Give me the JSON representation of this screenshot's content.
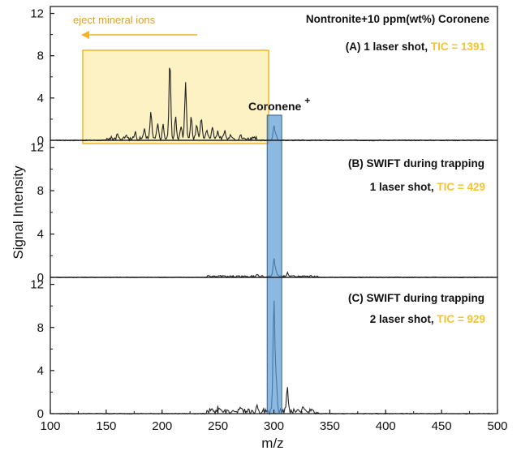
{
  "chart_data": {
    "type": "line",
    "xlabel": "m/z",
    "ylabel": "Signal Intensity",
    "xlim": [
      100,
      500
    ],
    "xticks": [
      100,
      150,
      200,
      250,
      300,
      350,
      400,
      450,
      500
    ],
    "yticks": [
      0,
      4,
      8,
      12
    ],
    "ylim": [
      0,
      12.5
    ],
    "colors": {
      "trace": "#222222",
      "highlight_fill": "#5b9bd5",
      "eject_box_fill": "#fbeeb0",
      "eject_box_stroke": "#f0b429",
      "tic_text": "#f4c430"
    },
    "panels": [
      {
        "id": "A",
        "title_line1": "Nontronite+10 ppm(wt%) Coronene",
        "title_line2_prefix": "(A) 1 laser shot, ",
        "tic": "TIC = 1391",
        "annotation": "eject mineral ions",
        "eject_region": [
          145,
          275
        ],
        "peaks": [
          {
            "x": 160,
            "y": 0.3
          },
          {
            "x": 168,
            "y": 0.5
          },
          {
            "x": 176,
            "y": 0.6
          },
          {
            "x": 184,
            "y": 0.9
          },
          {
            "x": 190,
            "y": 2.5
          },
          {
            "x": 196,
            "y": 1.5
          },
          {
            "x": 201,
            "y": 1.2
          },
          {
            "x": 207,
            "y": 7.5
          },
          {
            "x": 212,
            "y": 2.0
          },
          {
            "x": 217,
            "y": 1.2
          },
          {
            "x": 221,
            "y": 5.2
          },
          {
            "x": 226,
            "y": 2.0
          },
          {
            "x": 231,
            "y": 1.4
          },
          {
            "x": 235,
            "y": 2.1
          },
          {
            "x": 240,
            "y": 1.0
          },
          {
            "x": 245,
            "y": 1.2
          },
          {
            "x": 250,
            "y": 0.7
          },
          {
            "x": 256,
            "y": 0.6
          },
          {
            "x": 262,
            "y": 0.4
          },
          {
            "x": 270,
            "y": 0.3
          },
          {
            "x": 300,
            "y": 1.4
          },
          {
            "x": 302,
            "y": 0.5
          }
        ]
      },
      {
        "id": "B",
        "title_line1": "(B) SWIFT during trapping",
        "title_line2_prefix": "1 laser shot, ",
        "tic": "TIC = 429",
        "peaks": [
          {
            "x": 285,
            "y": 0.2
          },
          {
            "x": 300,
            "y": 1.7
          },
          {
            "x": 302,
            "y": 0.5
          },
          {
            "x": 312,
            "y": 0.3
          }
        ]
      },
      {
        "id": "C",
        "title_line1": "(C) SWIFT during trapping",
        "title_line2_prefix": "2 laser shot, ",
        "tic": "TIC = 929",
        "peaks": [
          {
            "x": 250,
            "y": 0.4
          },
          {
            "x": 270,
            "y": 0.5
          },
          {
            "x": 285,
            "y": 0.6
          },
          {
            "x": 300,
            "y": 10.5
          },
          {
            "x": 302,
            "y": 3.0
          },
          {
            "x": 312,
            "y": 2.2
          },
          {
            "x": 326,
            "y": 0.4
          }
        ]
      }
    ],
    "highlight": {
      "label": "Coronene",
      "superscript": "+",
      "range": [
        294,
        307
      ]
    }
  }
}
